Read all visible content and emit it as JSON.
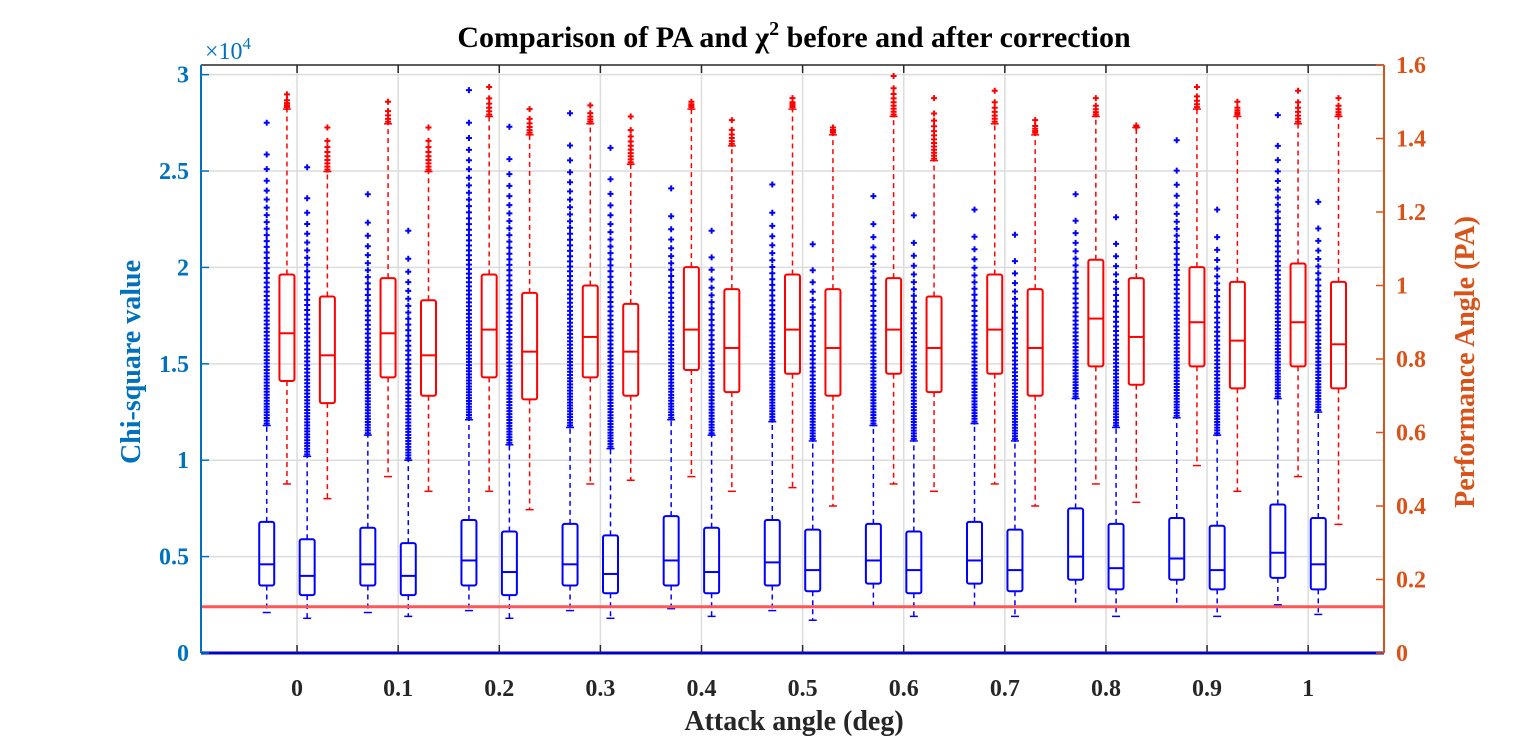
{
  "chart_data": {
    "type": "box",
    "title": "Comparison of PA and χ",
    "title_sup": "2",
    "title_rest": " before and after correction",
    "xlabel": "Attack angle (deg)",
    "ylabel_left": "Chi-square value",
    "ylabel_right": "Performance Angle (PA)",
    "left_exponent_label": "×10",
    "left_exponent_power": "4",
    "categories": [
      "0",
      "0.1",
      "0.2",
      "0.3",
      "0.4",
      "0.5",
      "0.6",
      "0.7",
      "0.8",
      "0.9",
      "1"
    ],
    "xlim": [
      -0.095,
      1.075
    ],
    "ylim_left": [
      0,
      30500
    ],
    "ylim_right": [
      0,
      1.6
    ],
    "left_ticks": [
      "0",
      "0.5",
      "1",
      "1.5",
      "2",
      "2.5",
      "3"
    ],
    "right_ticks": [
      "0",
      "0.2",
      "0.4",
      "0.6",
      "0.8",
      "1",
      "1.2",
      "1.4",
      "1.6"
    ],
    "grid": true,
    "colors": {
      "left_axis": "#0072BD",
      "right_axis": "#D95319",
      "chi_box": "#0000FF",
      "pa_box": "#FF0000",
      "threshold_line": "#FF5555",
      "baseline": "#0000CC",
      "grid": "#dcdcdc"
    },
    "threshold_line_left_value": 2400,
    "chi_square_before": {
      "offset": -0.03,
      "min": [
        2100,
        2100,
        2200,
        2200,
        2300,
        2200,
        2400,
        2400,
        2400,
        2400,
        2500
      ],
      "q1": [
        3500,
        3500,
        3500,
        3500,
        3500,
        3500,
        3600,
        3600,
        3800,
        3800,
        3900
      ],
      "median": [
        4600,
        4600,
        4800,
        4600,
        4800,
        4700,
        4800,
        4800,
        5000,
        4900,
        5200
      ],
      "q3": [
        6800,
        6500,
        6900,
        6700,
        7100,
        6900,
        6700,
        6800,
        7500,
        7000,
        7700
      ],
      "whisker_max": [
        11800,
        11300,
        12100,
        11700,
        12100,
        12000,
        11800,
        11900,
        13200,
        12200,
        13200
      ],
      "outlier_max": [
        27500,
        23800,
        29200,
        28000,
        24100,
        24300,
        23700,
        23000,
        23800,
        26600,
        27900
      ]
    },
    "chi_square_after": {
      "offset": 0.01,
      "min": [
        1800,
        1900,
        1800,
        1800,
        1900,
        1700,
        1900,
        1900,
        1900,
        1900,
        2000
      ],
      "q1": [
        3000,
        3000,
        3000,
        3100,
        3100,
        3200,
        3100,
        3200,
        3300,
        3300,
        3300
      ],
      "median": [
        4000,
        4000,
        4200,
        4100,
        4200,
        4300,
        4300,
        4300,
        4400,
        4300,
        4600
      ],
      "q3": [
        5900,
        5700,
        6300,
        6100,
        6500,
        6400,
        6300,
        6400,
        6700,
        6600,
        7000
      ],
      "whisker_max": [
        10200,
        10000,
        10800,
        10600,
        11300,
        11000,
        11000,
        11000,
        11700,
        11300,
        12500
      ],
      "outlier_max": [
        25200,
        21900,
        27300,
        26200,
        21900,
        21200,
        22700,
        21700,
        22600,
        23000,
        23400
      ]
    },
    "pa_before": {
      "offset": -0.01,
      "min": [
        0.46,
        0.48,
        0.44,
        0.46,
        0.48,
        0.45,
        0.46,
        0.46,
        0.46,
        0.51,
        0.48
      ],
      "q1": [
        0.74,
        0.75,
        0.75,
        0.75,
        0.77,
        0.76,
        0.76,
        0.76,
        0.78,
        0.78,
        0.78
      ],
      "median": [
        0.87,
        0.87,
        0.88,
        0.86,
        0.88,
        0.88,
        0.88,
        0.88,
        0.91,
        0.9,
        0.9
      ],
      "q3": [
        1.03,
        1.02,
        1.03,
        1.0,
        1.05,
        1.03,
        1.02,
        1.03,
        1.07,
        1.05,
        1.06
      ],
      "whisker_max": [
        1.48,
        1.44,
        1.46,
        1.44,
        1.48,
        1.48,
        1.46,
        1.44,
        1.46,
        1.48,
        1.44
      ],
      "outlier_max": [
        1.52,
        1.5,
        1.54,
        1.49,
        1.5,
        1.51,
        1.57,
        1.53,
        1.51,
        1.54,
        1.53
      ]
    },
    "pa_after": {
      "offset": 0.03,
      "min": [
        0.42,
        0.44,
        0.39,
        0.47,
        0.44,
        0.4,
        0.44,
        0.4,
        0.41,
        0.44,
        0.35
      ],
      "q1": [
        0.68,
        0.7,
        0.69,
        0.7,
        0.71,
        0.7,
        0.71,
        0.7,
        0.73,
        0.72,
        0.72
      ],
      "median": [
        0.81,
        0.81,
        0.82,
        0.82,
        0.83,
        0.83,
        0.83,
        0.83,
        0.86,
        0.85,
        0.84
      ],
      "q3": [
        0.97,
        0.96,
        0.98,
        0.95,
        0.99,
        0.99,
        0.97,
        0.99,
        1.02,
        1.01,
        1.01
      ],
      "whisker_max": [
        1.31,
        1.31,
        1.41,
        1.33,
        1.38,
        1.41,
        1.34,
        1.41,
        1.43,
        1.46,
        1.46
      ],
      "outlier_max": [
        1.43,
        1.43,
        1.48,
        1.46,
        1.45,
        1.43,
        1.51,
        1.45,
        1.43,
        1.5,
        1.51
      ]
    }
  }
}
